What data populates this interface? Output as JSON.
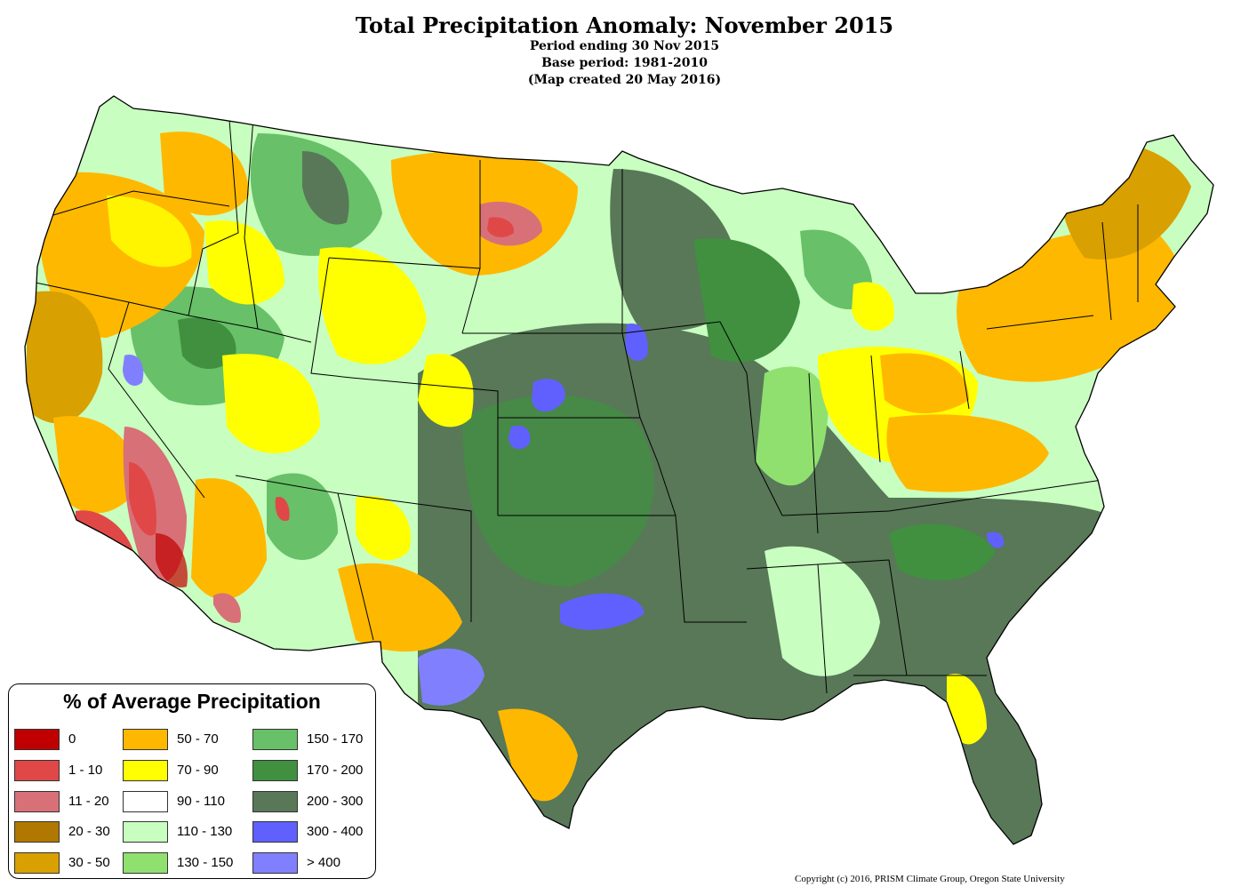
{
  "header": {
    "title": "Total Precipitation Anomaly: November 2015",
    "line1": "Period ending 30 Nov 2015",
    "line2": "Base period: 1981-2010",
    "line3": "(Map created 20 May 2016)"
  },
  "legend": {
    "title": "% of Average Precipitation",
    "items": [
      {
        "label": "0",
        "color": "#c00000"
      },
      {
        "label": "1 - 10",
        "color": "#e04848"
      },
      {
        "label": "11 - 20",
        "color": "#d87078"
      },
      {
        "label": "20 - 30",
        "color": "#b07800"
      },
      {
        "label": "30 - 50",
        "color": "#d8a000"
      },
      {
        "label": "50 - 70",
        "color": "#ffb800"
      },
      {
        "label": "70 - 90",
        "color": "#ffff00"
      },
      {
        "label": "90 - 110",
        "color": "#ffffff"
      },
      {
        "label": "110 - 130",
        "color": "#c8ffc0"
      },
      {
        "label": "130 - 150",
        "color": "#90e070"
      },
      {
        "label": "150 - 170",
        "color": "#68c068"
      },
      {
        "label": "170 - 200",
        "color": "#409040"
      },
      {
        "label": "200 - 300",
        "color": "#587858"
      },
      {
        "label": "300 - 400",
        "color": "#6060ff"
      },
      {
        "label": "> 400",
        "color": "#8080ff"
      }
    ]
  },
  "footer": {
    "copyright": "Copyright (c) 2016, PRISM Climate Group, Oregon State University"
  }
}
